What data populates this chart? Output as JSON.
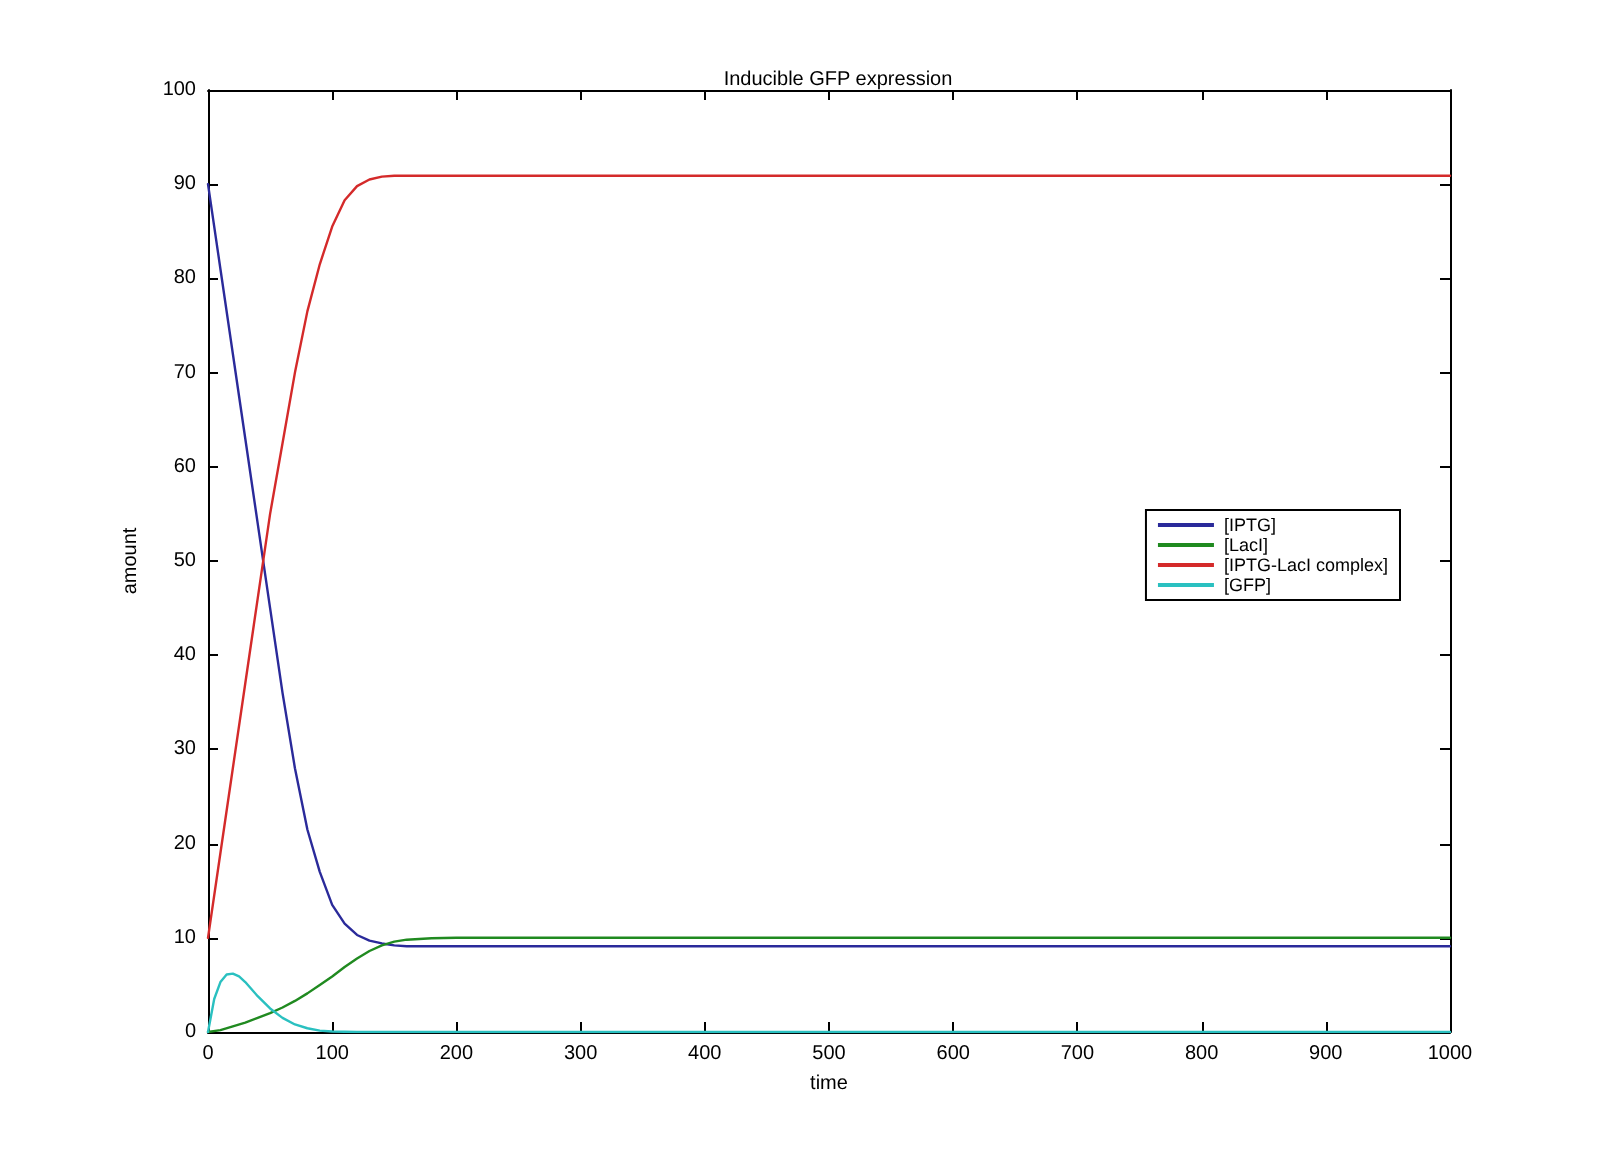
{
  "chart_data": {
    "type": "line",
    "title": "Inducible GFP expression",
    "xlabel": "time",
    "ylabel": "amount",
    "xlim": [
      0,
      1000
    ],
    "xticks": [
      0,
      100,
      200,
      300,
      400,
      500,
      600,
      700,
      800,
      900,
      1000
    ],
    "ylim": [
      0,
      100
    ],
    "yticks": [
      0,
      10,
      20,
      30,
      40,
      50,
      60,
      70,
      80,
      90,
      100
    ],
    "grid": false,
    "legend": "right",
    "marker": "none",
    "line_style": "solid",
    "series": [
      {
        "name": "[IPTG]",
        "color": "#2a2a9a",
        "x": [
          0,
          10,
          20,
          30,
          40,
          50,
          60,
          70,
          80,
          90,
          100,
          110,
          120,
          130,
          140,
          150,
          160,
          180,
          200,
          300,
          400,
          500,
          600,
          700,
          800,
          900,
          1000
        ],
        "values": [
          90,
          81,
          72,
          63,
          54,
          45,
          36,
          28,
          21.5,
          17,
          13.5,
          11.5,
          10.3,
          9.7,
          9.4,
          9.2,
          9.1,
          9.1,
          9.1,
          9.1,
          9.1,
          9.1,
          9.1,
          9.1,
          9.1,
          9.1,
          9.1
        ]
      },
      {
        "name": "[LacI]",
        "color": "#208a20",
        "x": [
          0,
          10,
          20,
          30,
          40,
          50,
          60,
          70,
          80,
          90,
          100,
          110,
          120,
          130,
          140,
          150,
          160,
          180,
          200,
          300,
          400,
          500,
          600,
          700,
          800,
          900,
          1000
        ],
        "values": [
          0,
          0.2,
          0.6,
          1,
          1.5,
          2,
          2.6,
          3.3,
          4.1,
          5,
          5.9,
          6.9,
          7.8,
          8.6,
          9.2,
          9.6,
          9.8,
          9.95,
          10,
          10,
          10,
          10,
          10,
          10,
          10,
          10,
          10
        ]
      },
      {
        "name": "[IPTG-LacI complex]",
        "color": "#d42a2a",
        "x": [
          0,
          10,
          20,
          30,
          40,
          50,
          60,
          70,
          80,
          90,
          100,
          110,
          120,
          130,
          140,
          150,
          160,
          180,
          200,
          300,
          400,
          500,
          600,
          700,
          800,
          900,
          1000
        ],
        "values": [
          10,
          19,
          28,
          37,
          46,
          55,
          62.5,
          70,
          76.5,
          81.5,
          85.5,
          88.3,
          89.8,
          90.5,
          90.8,
          90.9,
          90.9,
          90.9,
          90.9,
          90.9,
          90.9,
          90.9,
          90.9,
          90.9,
          90.9,
          90.9,
          90.9
        ]
      },
      {
        "name": "[GFP]",
        "color": "#2ac0c0",
        "x": [
          0,
          5,
          10,
          15,
          20,
          25,
          30,
          40,
          50,
          60,
          70,
          80,
          90,
          100,
          120,
          200,
          300,
          400,
          500,
          600,
          700,
          800,
          900,
          1000
        ],
        "values": [
          0,
          3.5,
          5.3,
          6.1,
          6.2,
          5.9,
          5.3,
          3.8,
          2.5,
          1.5,
          0.8,
          0.4,
          0.15,
          0.05,
          0,
          0,
          0,
          0,
          0,
          0,
          0,
          0,
          0,
          0
        ]
      }
    ]
  }
}
